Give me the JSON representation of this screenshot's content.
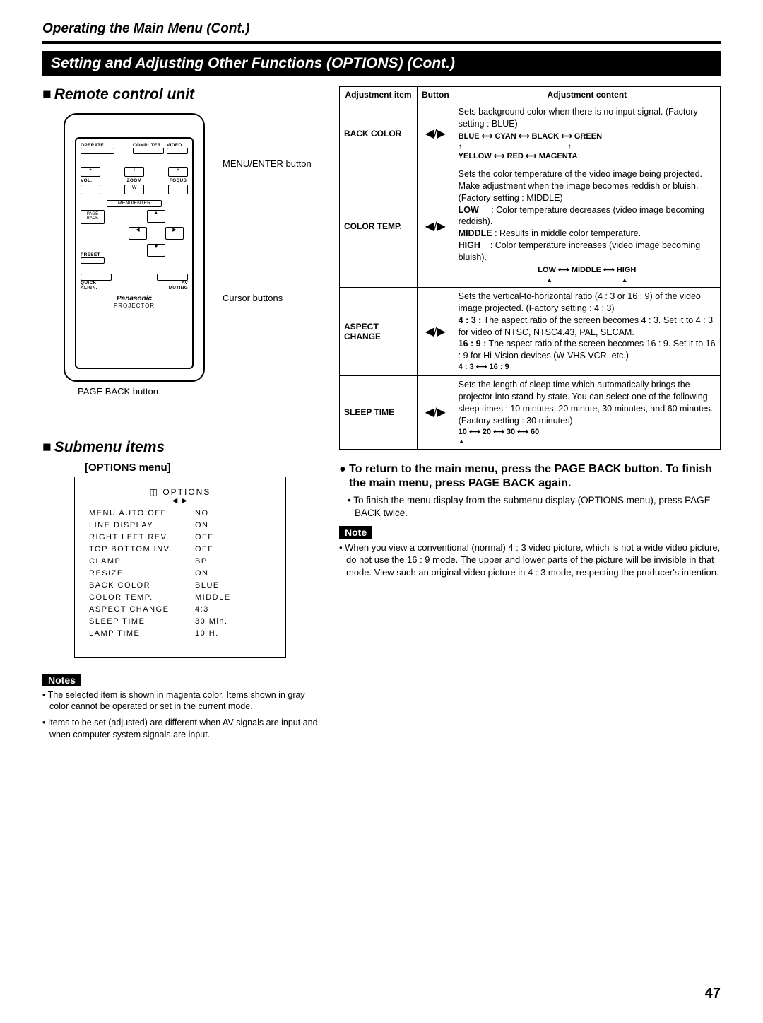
{
  "header": "Operating the Main Menu (Cont.)",
  "banner": "Setting and Adjusting Other Functions (OPTIONS) (Cont.)",
  "remote_title": "Remote control unit",
  "callouts": {
    "menu_enter": "MENU/ENTER button",
    "cursor": "Cursor buttons",
    "page_back": "PAGE BACK button"
  },
  "remote": {
    "operate": "OPERATE",
    "computer": "COMPUTER",
    "video": "VIDEO",
    "vol": "VOL.",
    "zoom": "ZOOM",
    "focus": "FOCUS",
    "t": "T",
    "w": "W",
    "menu_enter": "MENU/ENTER",
    "page_back": "PAGE\nBACK",
    "preset": "PRESET",
    "quick": "QUICK\nALIGN.",
    "av": "AV\nMUTING",
    "brand": "Panasonic",
    "proj": "PROJECTOR"
  },
  "submenu_title": "Submenu items",
  "submenu_label": "[OPTIONS menu]",
  "options_title": "OPTIONS",
  "options_icon": "◀ ▶",
  "options_items": [
    [
      "MENU AUTO OFF",
      "NO"
    ],
    [
      "LINE DISPLAY",
      "ON"
    ],
    [
      "RIGHT LEFT REV.",
      "OFF"
    ],
    [
      "TOP BOTTOM INV.",
      "OFF"
    ],
    [
      "CLAMP",
      "BP"
    ],
    [
      "RESIZE",
      "ON"
    ],
    [
      "BACK COLOR",
      "BLUE"
    ],
    [
      "COLOR TEMP.",
      "MIDDLE"
    ],
    [
      "ASPECT CHANGE",
      "4:3"
    ],
    [
      "SLEEP TIME",
      "30  Min."
    ],
    [
      "LAMP TIME",
      "10  H."
    ]
  ],
  "notes_label": "Notes",
  "notes_left": [
    "• The selected item is shown in magenta color. Items shown in gray color cannot be operated or set in the current mode.",
    "• Items to be set (adjusted) are different when AV signals are input and when computer-system signals are input."
  ],
  "table_head": {
    "c1": "Adjustment item",
    "c2": "Button",
    "c3": "Adjustment content"
  },
  "btn_glyph": "◀/▶",
  "rows": {
    "back_color": {
      "item": "BACK COLOR",
      "desc": "Sets background color when there is no input signal. (Factory setting : BLUE)",
      "cycle1": "BLUE ⟷ CYAN ⟷ BLACK ⟷ GREEN",
      "cycle2": "YELLOW   ⟷   RED   ⟷   MAGENTA"
    },
    "color_temp": {
      "item": "COLOR TEMP.",
      "desc": "Sets the color temperature of the video image being projected. Make adjustment when the image becomes reddish or bluish. (Factory setting : MIDDLE)",
      "low": "LOW",
      "low_d": ": Color temperature decreases (video image becoming reddish).",
      "mid": "MIDDLE",
      "mid_d": ": Results in middle color temperature.",
      "high": "HIGH",
      "high_d": ": Color temperature increases (video image becoming bluish).",
      "cycle": "LOW ⟷ MIDDLE ⟷ HIGH"
    },
    "aspect": {
      "item": "ASPECT CHANGE",
      "desc": "Sets the vertical-to-horizontal ratio (4 : 3 or 16 : 9) of the video image projected. (Factory setting : 4 : 3)",
      "r43": "4 : 3 :",
      "r43_d": "The aspect ratio of the screen becomes 4 : 3. Set it to 4 : 3 for video of NTSC, NTSC4.43, PAL, SECAM.",
      "r169": "16 : 9 :",
      "r169_d": "The aspect ratio of the screen becomes 16 : 9. Set it to 16 : 9 for Hi-Vision devices (W-VHS VCR, etc.)",
      "cycle": "4 : 3 ⟷ 16 : 9"
    },
    "sleep": {
      "item": "SLEEP TIME",
      "desc": "Sets the length of sleep time which automatically brings the projector into stand-by state. You can select one of the following sleep times : 10 minutes, 20 minute, 30 minutes, and 60 minutes. (Factory setting : 30 minutes)",
      "cycle": "10 ⟷ 20 ⟷ 30 ⟷ 60"
    }
  },
  "return_head": "● To return to the main menu, press the PAGE BACK button. To finish the main menu, press PAGE BACK again.",
  "return_sub": "• To finish the menu display from the submenu display (OPTIONS menu), press PAGE BACK twice.",
  "note_label": "Note",
  "note_right": "• When you view a conventional (normal) 4 : 3 video picture, which is not a wide video picture, do not use the 16 : 9 mode. The upper and lower parts of the picture will be invisible in that mode. View such an original video picture in 4 : 3 mode, respecting the producer's intention.",
  "page_num": "47"
}
